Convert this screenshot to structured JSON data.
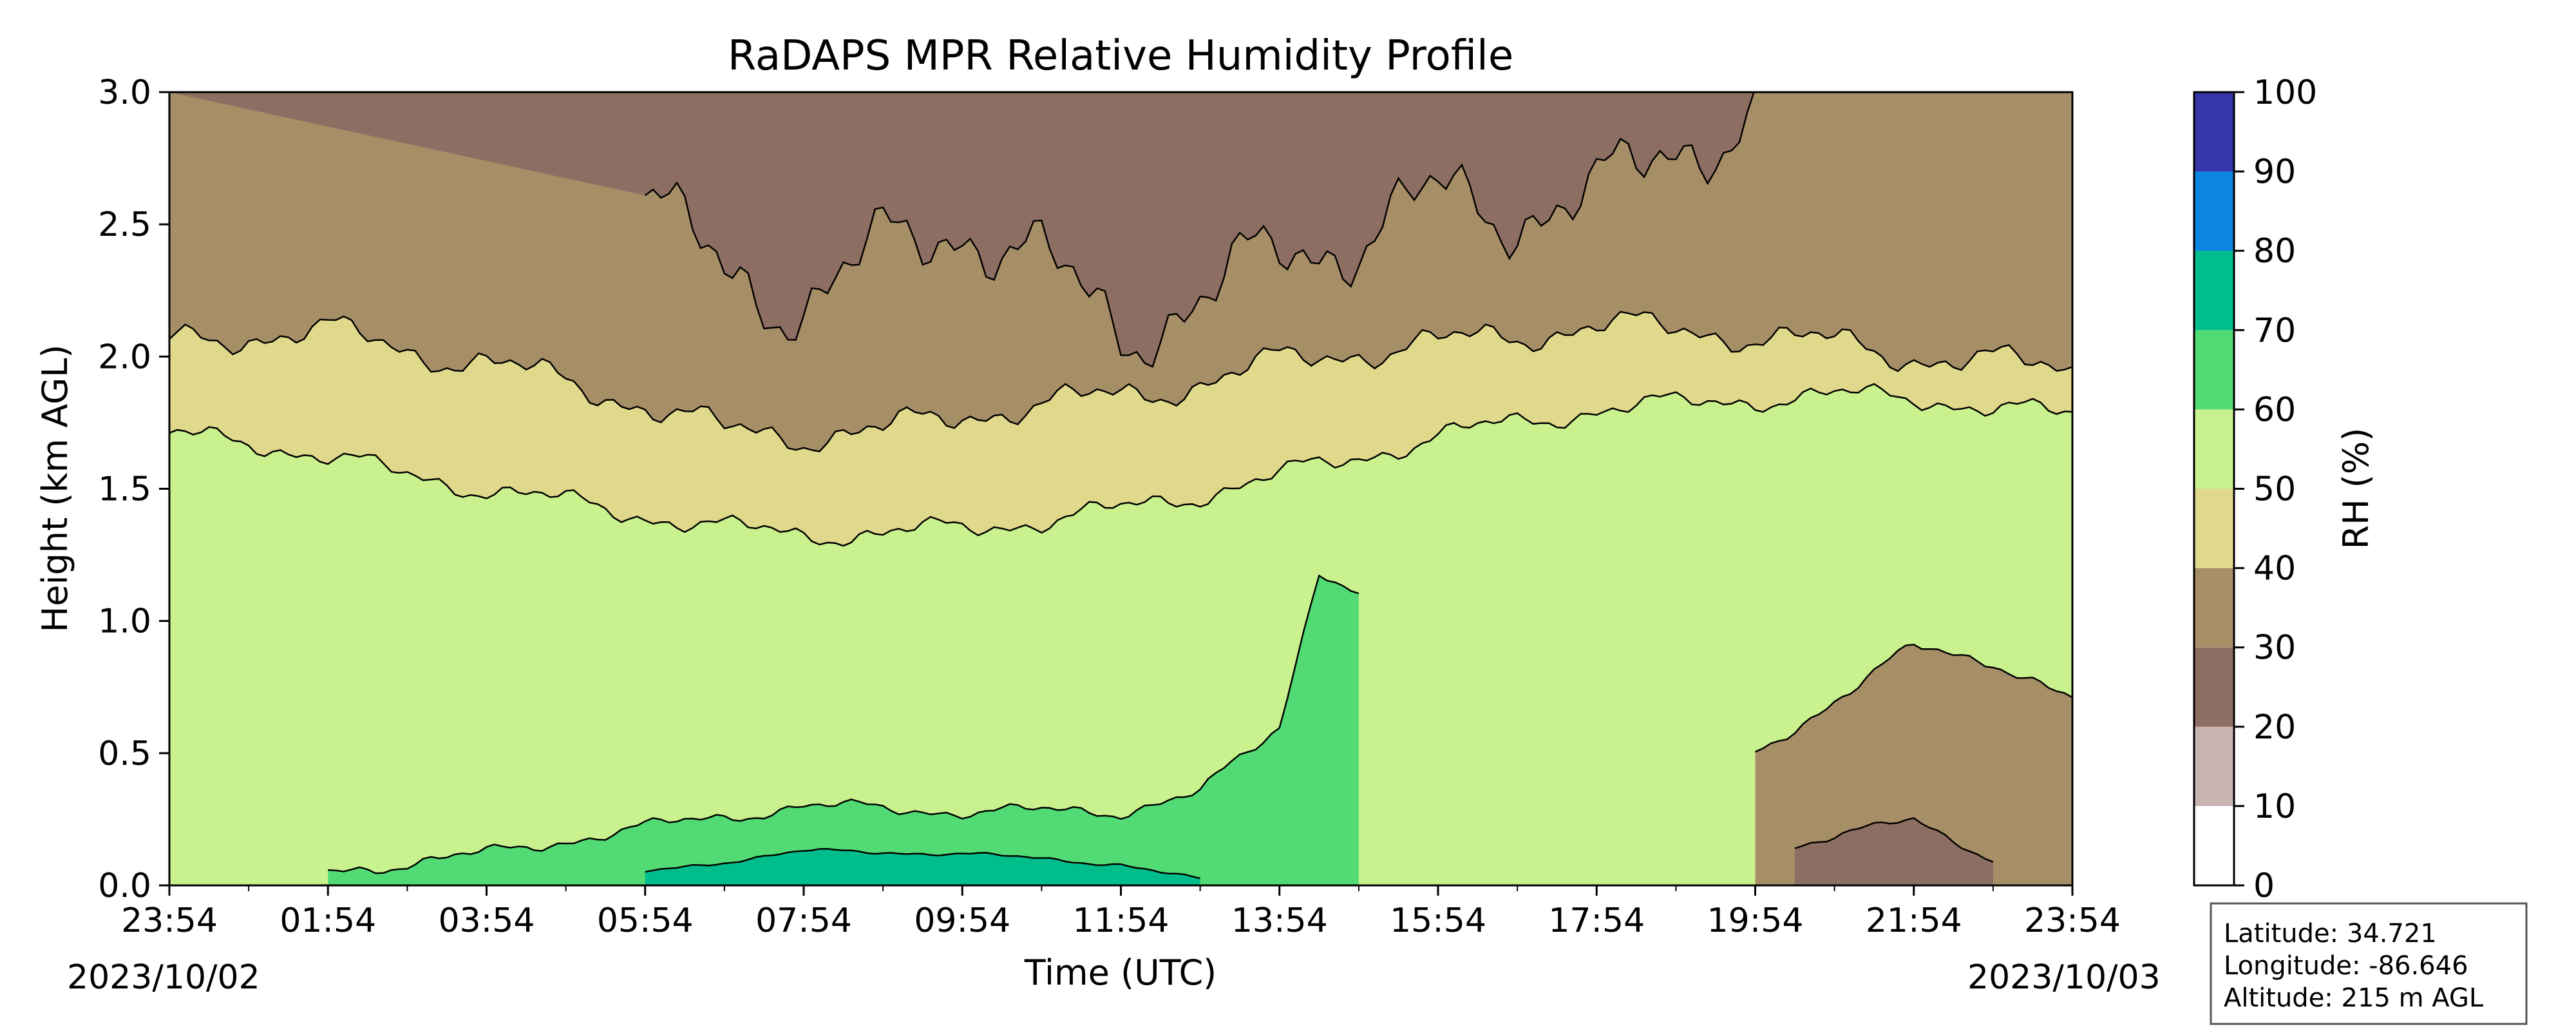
{
  "chart_data": {
    "type": "heatmap",
    "title": "RaDAPS MPR Relative Humidity Profile",
    "xlabel": "Time (UTC)",
    "ylabel": "Height (km AGL)",
    "x_tick_labels": [
      "23:54",
      "01:54",
      "03:54",
      "05:54",
      "07:54",
      "09:54",
      "11:54",
      "13:54",
      "15:54",
      "17:54",
      "19:54",
      "21:54",
      "23:54"
    ],
    "x_tick_hours": [
      0,
      2,
      4,
      6,
      8,
      10,
      12,
      14,
      16,
      18,
      20,
      22,
      24
    ],
    "x_start_date": "2023/10/02",
    "x_end_date": "2023/10/03",
    "xlim_hours": [
      0,
      24
    ],
    "y_ticks": [
      "0.0",
      "0.5",
      "1.0",
      "1.5",
      "2.0",
      "2.5",
      "3.0"
    ],
    "ylim": [
      0,
      3.0
    ],
    "colorbar": {
      "label": "RH (%)",
      "ticks": [
        "0",
        "10",
        "20",
        "30",
        "40",
        "50",
        "60",
        "70",
        "80",
        "90",
        "100"
      ],
      "levels": [
        0,
        10,
        20,
        30,
        40,
        50,
        60,
        70,
        80,
        90,
        100
      ],
      "colors": [
        "#ffffff",
        "#c8b4b0",
        "#8d6e63",
        "#a68e67",
        "#e0d98c",
        "#c9f28e",
        "#52db74",
        "#00bd8c",
        "#0a86e0",
        "#3536a8"
      ]
    },
    "contour_color": "#000000",
    "bands_upper_km": [
      {
        "level": "40-50 / 50-60 boundary",
        "hours": [
          0,
          1,
          2,
          3,
          4,
          5,
          6,
          7,
          8,
          9,
          10,
          11,
          12,
          13,
          14,
          15,
          16,
          17,
          18,
          19,
          20,
          21,
          22,
          23,
          24
        ],
        "km": [
          1.7,
          1.68,
          1.62,
          1.55,
          1.5,
          1.45,
          1.4,
          1.35,
          1.33,
          1.33,
          1.35,
          1.38,
          1.42,
          1.48,
          1.55,
          1.62,
          1.7,
          1.75,
          1.8,
          1.82,
          1.84,
          1.85,
          1.85,
          1.8,
          1.78
        ]
      },
      {
        "level": "30-40 / 40-50 boundary",
        "hours": [
          0,
          1,
          2,
          3,
          4,
          5,
          6,
          7,
          8,
          9,
          10,
          11,
          12,
          13,
          14,
          15,
          16,
          17,
          18,
          19,
          20,
          21,
          22,
          23,
          24
        ],
        "km": [
          2.05,
          2.08,
          2.1,
          2.02,
          1.98,
          1.9,
          1.82,
          1.72,
          1.7,
          1.72,
          1.78,
          1.82,
          1.85,
          1.9,
          1.98,
          2.02,
          2.05,
          2.08,
          2.12,
          2.1,
          2.08,
          2.05,
          2.0,
          1.98,
          1.95
        ]
      },
      {
        "level": "20-30 / 30-40 boundary",
        "hours": [
          6,
          7,
          8,
          9,
          10,
          11,
          12,
          13,
          14,
          15,
          16,
          17,
          18,
          19,
          20
        ],
        "km": [
          2.6,
          2.3,
          2.2,
          2.4,
          2.5,
          2.35,
          2.1,
          2.2,
          2.4,
          2.45,
          2.6,
          2.55,
          2.6,
          2.8,
          2.9
        ]
      }
    ],
    "bands_lower_km": [
      {
        "level": "60-70 (lower wet layer)",
        "hours": [
          2,
          4,
          6,
          8,
          10,
          12,
          13,
          14,
          14.5,
          15
        ],
        "km": [
          0.05,
          0.12,
          0.22,
          0.3,
          0.28,
          0.28,
          0.35,
          0.6,
          1.2,
          1.1
        ]
      },
      {
        "level": "70-80 (surface moist core)",
        "hours": [
          6,
          8,
          10,
          12,
          13
        ],
        "km": [
          0.05,
          0.13,
          0.12,
          0.08,
          0.02
        ]
      },
      {
        "level": "30-40 (morning dry lobe)",
        "hours": [
          20,
          21,
          22,
          23,
          24
        ],
        "km": [
          0.5,
          0.7,
          0.9,
          0.85,
          0.7
        ]
      },
      {
        "level": "20-30 (evening dry core)",
        "hours": [
          20.5,
          22,
          23
        ],
        "km": [
          0.15,
          0.25,
          0.1
        ]
      }
    ]
  },
  "info_box": {
    "latitude": "Latitude: 34.721",
    "longitude": "Longitude: -86.646",
    "altitude": "Altitude: 215 m AGL"
  }
}
